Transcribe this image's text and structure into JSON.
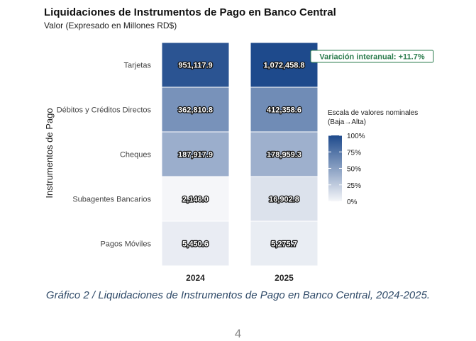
{
  "chart_data": {
    "type": "heatmap",
    "title": "Liquidaciones de Instrumentos de Pago en Banco Central",
    "subtitle": "Valor (Expresado en Millones RD$)",
    "xlabel": "",
    "ylabel": "Instrumentos de Pago",
    "x": [
      "2024",
      "2025"
    ],
    "categories": [
      "Tarjetas",
      "Débitos y Créditos Directos",
      "Cheques",
      "Subagentes Bancarios",
      "Pagos Móviles"
    ],
    "values": [
      [
        951117.9,
        1072458.8
      ],
      [
        362810.8,
        412358.6
      ],
      [
        187917.9,
        178959.3
      ],
      [
        2146.0,
        16902.8
      ],
      [
        5450.6,
        5275.7
      ]
    ],
    "value_labels": [
      [
        "951,117.9",
        "1,072,458.8"
      ],
      [
        "362,810.8",
        "412,358.6"
      ],
      [
        "187,917.9",
        "178,959.3"
      ],
      [
        "2,146.0",
        "16,902.8"
      ],
      [
        "5,450.6",
        "5,275.7"
      ]
    ],
    "legend": {
      "title_line1": "Escala de valores nominales",
      "title_line2": "(Baja→Alta)",
      "ticks": [
        "100%",
        "75%",
        "50%",
        "25%",
        "0%"
      ],
      "position": "right",
      "color_low": "#f5f6f9",
      "color_high": "#1e4a8c"
    },
    "annotation": "Variación interanual: +11.7%",
    "annotation_color": "#2e7d4f",
    "grid": false
  },
  "caption": "Gráfico 2 / Liquidaciones de Instrumentos de Pago en Banco Central, 2024-2025.",
  "page_number": "4"
}
